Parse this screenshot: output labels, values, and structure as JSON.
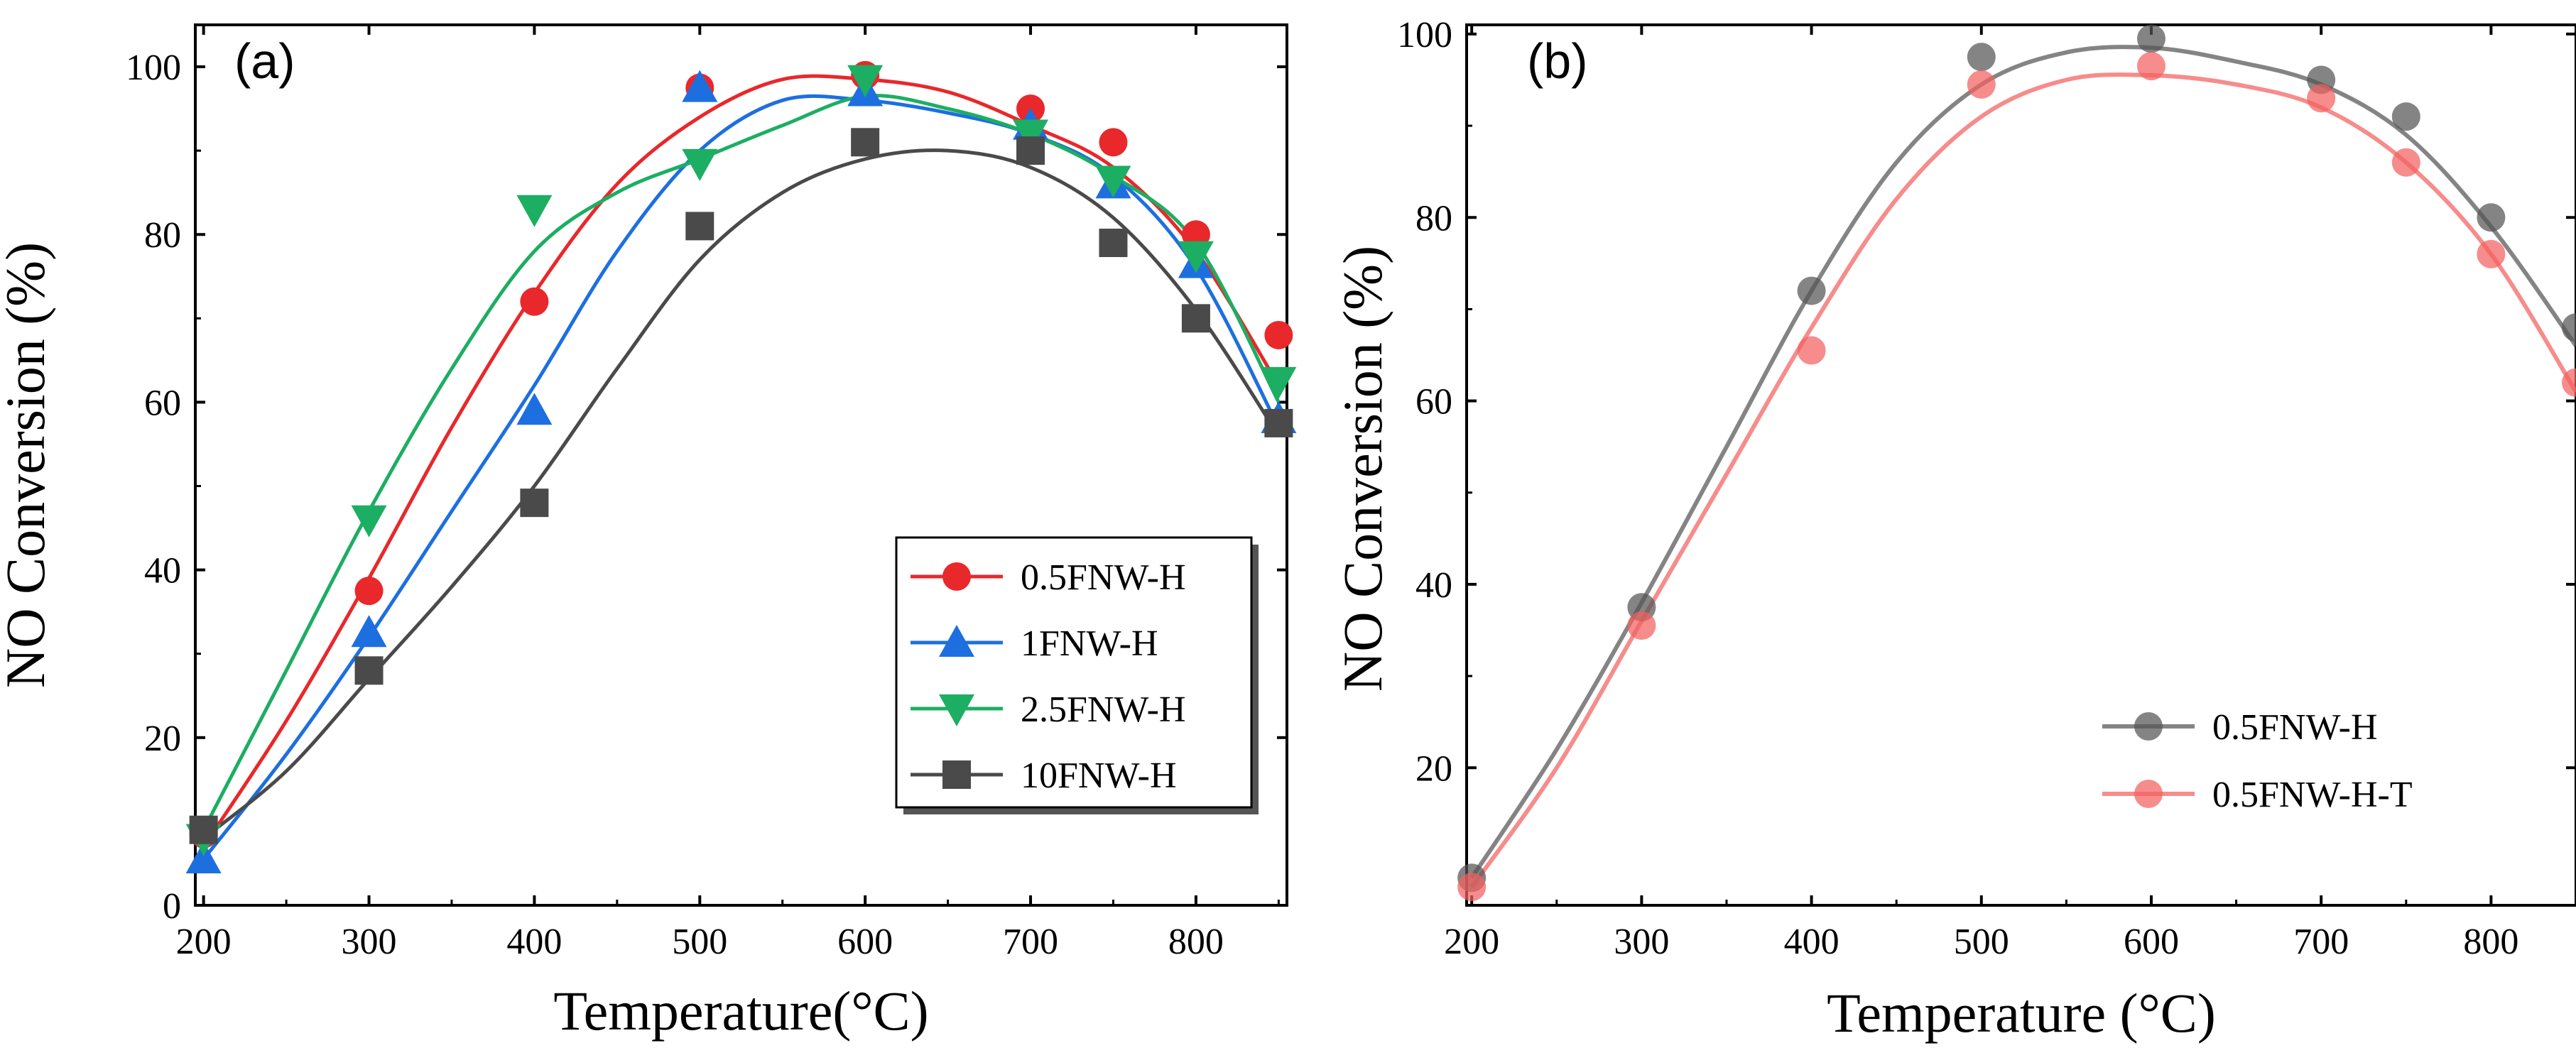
{
  "chart_data": [
    {
      "type": "line",
      "panel_label": "(a)",
      "xlabel": "Temperature(°C)",
      "ylabel": "NO Conversion (%)",
      "xlim": [
        195,
        855
      ],
      "ylim": [
        0,
        105
      ],
      "xticks": [
        200,
        300,
        400,
        500,
        600,
        700,
        800
      ],
      "yticks": [
        0,
        20,
        40,
        60,
        80,
        100
      ],
      "legend_position": "bottom-right",
      "x": [
        200,
        300,
        400,
        500,
        600,
        700,
        750,
        800,
        850
      ],
      "series": [
        {
          "name": "0.5FNW-H",
          "color": "#e8282b",
          "marker": "circle",
          "values": [
            8.5,
            37.5,
            72,
            97.5,
            99,
            95,
            91,
            80,
            68
          ],
          "fit_x": [
            200,
            250,
            300,
            350,
            400,
            450,
            500,
            550,
            600,
            650,
            700,
            750,
            800,
            850
          ],
          "fit_y": [
            7,
            22,
            39,
            57,
            73,
            86,
            94,
            98.5,
            98.5,
            97,
            93,
            88,
            78,
            62
          ]
        },
        {
          "name": "1FNW-H",
          "color": "#1d6fe0",
          "marker": "triangle-up",
          "values": [
            5.5,
            32.5,
            59,
            97.5,
            97,
            93,
            86,
            76.5,
            58
          ],
          "fit_x": [
            200,
            250,
            300,
            350,
            400,
            450,
            500,
            550,
            600,
            650,
            700,
            750,
            800,
            850
          ],
          "fit_y": [
            5.5,
            18,
            32,
            47,
            62,
            78,
            90,
            96,
            96,
            94.5,
            92,
            87,
            76,
            57
          ]
        },
        {
          "name": "2.5FNW-H",
          "color": "#1cae62",
          "marker": "triangle-down",
          "values": [
            8,
            46,
            83,
            88.5,
            98.5,
            92,
            86.5,
            77.5,
            62.5
          ],
          "fit_x": [
            200,
            250,
            300,
            350,
            400,
            450,
            500,
            550,
            600,
            650,
            700,
            750,
            800,
            850
          ],
          "fit_y": [
            9,
            28,
            47,
            64,
            78,
            85,
            89,
            93,
            96.5,
            95,
            92,
            87,
            79,
            60
          ]
        },
        {
          "name": "10FNW-H",
          "color": "#4a4a4a",
          "marker": "square",
          "values": [
            9,
            28,
            48,
            81,
            91,
            90,
            79,
            70,
            57.5
          ],
          "fit_x": [
            200,
            250,
            300,
            350,
            400,
            450,
            500,
            550,
            600,
            650,
            700,
            750,
            800,
            850
          ],
          "fit_y": [
            8,
            16,
            27,
            38,
            50,
            64,
            77,
            85,
            89,
            90,
            88,
            82,
            71,
            56
          ]
        }
      ]
    },
    {
      "type": "line",
      "panel_label": "(b)",
      "xlabel": "Temperature (°C)",
      "ylabel": "NO Conversion (%)",
      "xlim": [
        197,
        850
      ],
      "ylim": [
        5,
        101
      ],
      "xticks": [
        200,
        300,
        400,
        500,
        600,
        700,
        800
      ],
      "yticks": [
        20,
        40,
        60,
        80,
        100
      ],
      "legend_position": "bottom-right",
      "x": [
        200,
        300,
        400,
        500,
        600,
        700,
        750,
        800,
        850
      ],
      "series": [
        {
          "name": "0.5FNW-H",
          "color": "#555555",
          "marker": "circle",
          "values": [
            8,
            37.5,
            72,
            97.5,
            99.5,
            95,
            91,
            80,
            68
          ],
          "fit_x": [
            200,
            250,
            300,
            350,
            400,
            450,
            500,
            550,
            600,
            650,
            700,
            750,
            800,
            850
          ],
          "fit_y": [
            8,
            22,
            38,
            55,
            72,
            86,
            94.5,
            98,
            98.5,
            97,
            94.5,
            89,
            79,
            66
          ]
        },
        {
          "name": "0.5FNW-H-T",
          "color": "#f2605e",
          "marker": "circle",
          "values": [
            7,
            35.5,
            65.5,
            94.5,
            96.5,
            93,
            86,
            76,
            62
          ],
          "fit_x": [
            200,
            250,
            300,
            350,
            400,
            450,
            500,
            550,
            600,
            650,
            700,
            750,
            800,
            850
          ],
          "fit_y": [
            7,
            20,
            36,
            52,
            68,
            82,
            91,
            95,
            95.5,
            94.5,
            92,
            86,
            76,
            61
          ]
        }
      ]
    }
  ]
}
